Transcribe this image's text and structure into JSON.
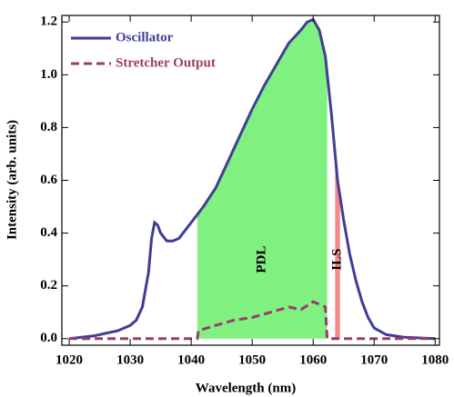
{
  "chart_data": {
    "type": "line",
    "xlabel": "Wavelength (nm)",
    "ylabel": "Intensity (arb. units)",
    "xlim": [
      1018.8,
      1080.7
    ],
    "ylim": [
      -0.025,
      1.225
    ],
    "xticks": [
      1020,
      1030,
      1040,
      1050,
      1060,
      1070,
      1080
    ],
    "yticks": [
      {
        "value": 0,
        "label": "0.0"
      },
      {
        "value": 0.2,
        "label": "0.2"
      },
      {
        "value": 0.4,
        "label": "0.4"
      },
      {
        "value": 0.6,
        "label": "0.6"
      },
      {
        "value": 0.8,
        "label": "0.8"
      },
      {
        "value": 1,
        "label": "1.0"
      },
      {
        "value": 1.2,
        "label": "1.2"
      }
    ],
    "legend": "upper left",
    "series": [
      {
        "name": "Oscillator",
        "color": "#3e3e96",
        "dash": false,
        "x": [
          1020,
          1022,
          1024,
          1026,
          1028,
          1030,
          1031,
          1032,
          1033,
          1033.5,
          1034,
          1034.5,
          1035,
          1036,
          1037,
          1038,
          1039,
          1040,
          1041,
          1042,
          1044,
          1046,
          1048,
          1050,
          1052,
          1054,
          1056,
          1058,
          1059,
          1060,
          1061,
          1062,
          1063,
          1064,
          1065,
          1066,
          1067,
          1068,
          1069,
          1070,
          1072,
          1075,
          1080
        ],
        "values": [
          0,
          0.005,
          0.01,
          0.02,
          0.03,
          0.05,
          0.07,
          0.12,
          0.25,
          0.38,
          0.44,
          0.43,
          0.4,
          0.37,
          0.37,
          0.38,
          0.41,
          0.44,
          0.47,
          0.5,
          0.57,
          0.67,
          0.77,
          0.87,
          0.96,
          1.04,
          1.12,
          1.17,
          1.2,
          1.21,
          1.17,
          1.07,
          0.85,
          0.6,
          0.45,
          0.32,
          0.22,
          0.14,
          0.08,
          0.04,
          0.015,
          0.005,
          0
        ]
      },
      {
        "name": "Stretcher Output",
        "color": "#9a3d6c",
        "dash": true,
        "x": [
          1020,
          1041,
          1041.2,
          1044,
          1047,
          1050,
          1053,
          1056,
          1058,
          1060,
          1061,
          1062,
          1062.3,
          1080
        ],
        "values": [
          0,
          0,
          0.03,
          0.05,
          0.07,
          0.08,
          0.1,
          0.12,
          0.11,
          0.14,
          0.13,
          0.12,
          0,
          0
        ]
      }
    ],
    "regions": [
      {
        "label": "PDL",
        "x": [
          1041,
          1062.3
        ],
        "color": "#80f080"
      },
      {
        "label": "ILS",
        "x": [
          1063.6,
          1064.4
        ],
        "color": "#f48a8a"
      }
    ]
  }
}
